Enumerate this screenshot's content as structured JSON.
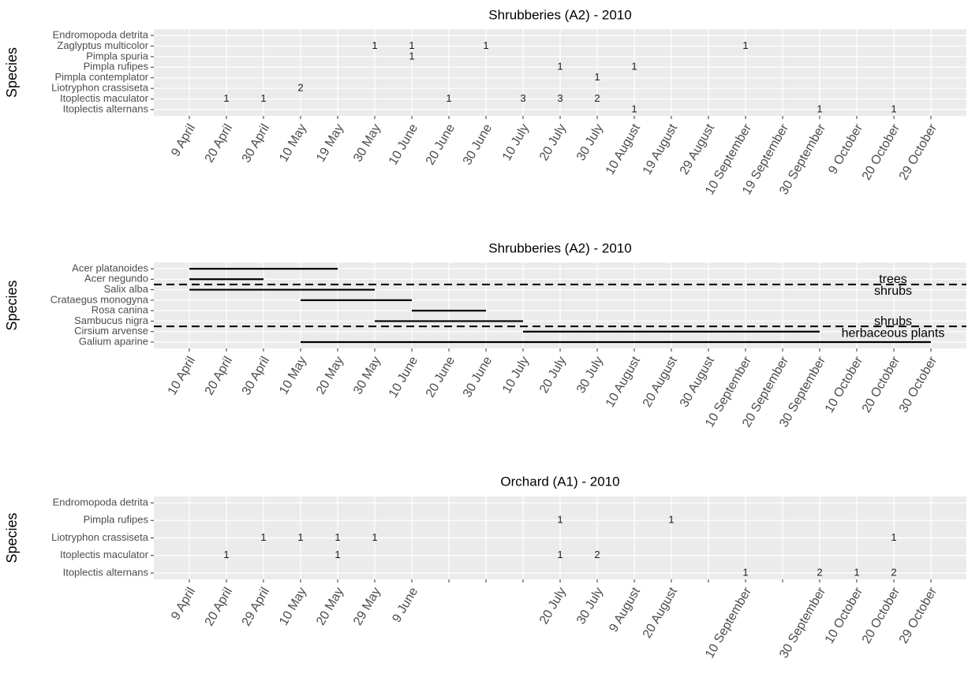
{
  "chart_data": [
    {
      "type": "count-grid",
      "title": "Shrubberies (A2) - 2010",
      "ylabel": "Species",
      "grid": true,
      "categories": [
        "9 April",
        "20 April",
        "30 April",
        "10 May",
        "19 May",
        "30 May",
        "10 June",
        "20 June",
        "30 June",
        "10 July",
        "20 July",
        "30 July",
        "10 August",
        "19 August",
        "29 August",
        "10 September",
        "19 September",
        "30 September",
        "9 October",
        "20 October",
        "29 October"
      ],
      "series": [
        {
          "name": "Endromopoda detrita",
          "values": [
            null,
            null,
            null,
            null,
            null,
            null,
            null,
            null,
            null,
            null,
            null,
            null,
            null,
            null,
            null,
            null,
            null,
            null,
            null,
            null,
            null
          ]
        },
        {
          "name": "Zaglyptus multicolor",
          "values": [
            null,
            null,
            null,
            null,
            null,
            1,
            1,
            null,
            1,
            null,
            null,
            null,
            null,
            null,
            null,
            1,
            null,
            null,
            null,
            null,
            null
          ]
        },
        {
          "name": "Pimpla spuria",
          "values": [
            null,
            null,
            null,
            null,
            null,
            null,
            1,
            null,
            null,
            null,
            null,
            null,
            null,
            null,
            null,
            null,
            null,
            null,
            null,
            null,
            null
          ]
        },
        {
          "name": "Pimpla rufipes",
          "values": [
            null,
            null,
            null,
            null,
            null,
            null,
            null,
            null,
            null,
            null,
            1,
            null,
            1,
            null,
            null,
            null,
            null,
            null,
            null,
            null,
            null
          ]
        },
        {
          "name": "Pimpla contemplator",
          "values": [
            null,
            null,
            null,
            null,
            null,
            null,
            null,
            null,
            null,
            null,
            null,
            1,
            null,
            null,
            null,
            null,
            null,
            null,
            null,
            null,
            null
          ]
        },
        {
          "name": "Liotryphon crassiseta",
          "values": [
            null,
            null,
            null,
            2,
            null,
            null,
            null,
            null,
            null,
            null,
            null,
            null,
            null,
            null,
            null,
            null,
            null,
            null,
            null,
            null,
            null
          ]
        },
        {
          "name": "Itoplectis maculator",
          "values": [
            null,
            1,
            1,
            null,
            null,
            null,
            null,
            1,
            null,
            3,
            3,
            2,
            null,
            null,
            null,
            null,
            null,
            null,
            null,
            null,
            null
          ]
        },
        {
          "name": "Itoplectis alternans",
          "values": [
            null,
            null,
            null,
            null,
            null,
            null,
            null,
            null,
            null,
            null,
            null,
            null,
            1,
            null,
            null,
            null,
            null,
            1,
            null,
            1,
            null
          ]
        }
      ]
    },
    {
      "type": "range",
      "title": "Shrubberies (A2) - 2010",
      "ylabel": "Species",
      "grid": true,
      "color": "#000000",
      "categories": [
        "10 April",
        "20 April",
        "30 April",
        "10 May",
        "20 May",
        "30 May",
        "10 June",
        "20 June",
        "30 June",
        "10 July",
        "20 July",
        "30 July",
        "10 August",
        "20 August",
        "30 August",
        "10 September",
        "20 September",
        "30 September",
        "10 October",
        "20 October",
        "30 October"
      ],
      "series": [
        {
          "name": "Acer platanoides",
          "group": "trees",
          "start": "10 April",
          "end": "20 May"
        },
        {
          "name": "Acer negundo",
          "group": "trees",
          "start": "10 April",
          "end": "30 April"
        },
        {
          "name": "Salix alba",
          "group": "shrubs",
          "start": "10 April",
          "end": "30 May"
        },
        {
          "name": "Crataegus monogyna",
          "group": "shrubs",
          "start": "10 May",
          "end": "10 June"
        },
        {
          "name": "Rosa canina",
          "group": "shrubs",
          "start": "10 June",
          "end": "30 June"
        },
        {
          "name": "Sambucus nigra",
          "group": "shrubs",
          "start": "30 May",
          "end": "10 July"
        },
        {
          "name": "Cirsium arvense",
          "group": "herbaceous plants",
          "start": "10 July",
          "end": "30 September"
        },
        {
          "name": "Galium aparine",
          "group": "herbaceous plants",
          "start": "10 May",
          "end": "30 October"
        }
      ]
    },
    {
      "type": "count-grid",
      "title": "Orchard (A1) - 2010",
      "ylabel": "Species",
      "grid": true,
      "categories": [
        "9 April",
        "20 April",
        "29 April",
        "10 May",
        "20 May",
        "29 May",
        "9 June",
        null,
        null,
        null,
        "20 July",
        "30 July",
        "9 August",
        "20 August",
        null,
        "10 September",
        null,
        "30 September",
        "10 October",
        "20 October",
        "29 October"
      ],
      "series": [
        {
          "name": "Endromopoda detrita",
          "values": [
            null,
            null,
            null,
            null,
            null,
            null,
            null,
            null,
            null,
            null,
            null,
            null,
            null,
            null,
            null,
            null,
            null,
            null,
            null,
            null,
            null
          ]
        },
        {
          "name": "Pimpla rufipes",
          "values": [
            null,
            null,
            null,
            null,
            null,
            null,
            null,
            null,
            null,
            null,
            1,
            null,
            null,
            1,
            null,
            null,
            null,
            null,
            null,
            null,
            null
          ]
        },
        {
          "name": "Liotryphon crassiseta",
          "values": [
            null,
            null,
            1,
            1,
            1,
            1,
            null,
            null,
            null,
            null,
            null,
            null,
            null,
            null,
            null,
            null,
            null,
            null,
            null,
            1,
            null
          ]
        },
        {
          "name": "Itoplectis maculator",
          "values": [
            null,
            1,
            null,
            null,
            1,
            null,
            null,
            null,
            null,
            null,
            1,
            2,
            null,
            null,
            null,
            null,
            null,
            null,
            null,
            null,
            null
          ]
        },
        {
          "name": "Itoplectis alternans",
          "values": [
            null,
            null,
            null,
            null,
            null,
            null,
            null,
            null,
            null,
            null,
            null,
            null,
            null,
            null,
            null,
            1,
            null,
            2,
            1,
            2,
            null
          ]
        }
      ]
    }
  ]
}
